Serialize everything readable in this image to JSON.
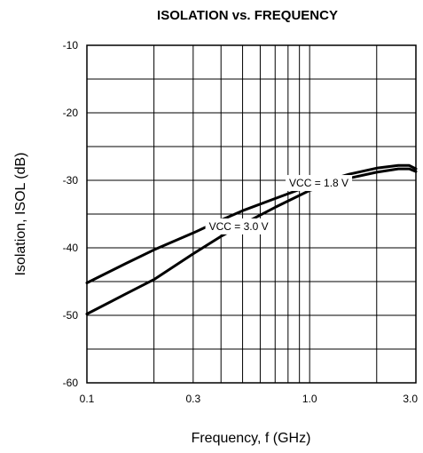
{
  "chart_data": {
    "type": "line",
    "title": "ISOLATION vs. FREQUENCY",
    "xlabel": "Frequency, f (GHz)",
    "ylabel": "Isolation, ISOL  (dB)",
    "x_scale": "log",
    "xlim": [
      0.1,
      3.0
    ],
    "ylim": [
      -60,
      -10
    ],
    "x_ticks": [
      0.1,
      0.3,
      1.0,
      3.0
    ],
    "x_tick_labels": [
      "0.1",
      "0.3",
      "1.0",
      "3.0"
    ],
    "x_gridlines": [
      0.1,
      0.2,
      0.3,
      0.4,
      0.5,
      0.6,
      0.7,
      0.8,
      0.9,
      1.0,
      2.0,
      3.0
    ],
    "y_ticks": [
      -10,
      -20,
      -30,
      -40,
      -50,
      -60
    ],
    "y_tick_labels": [
      "-10",
      "-20",
      "-30",
      "-40",
      "-50",
      "-60"
    ],
    "y_gridlines": [
      -10,
      -15,
      -20,
      -25,
      -30,
      -35,
      -40,
      -45,
      -50,
      -55,
      -60
    ],
    "grid": true,
    "legend": "none",
    "series": [
      {
        "name": "VCC = 1.8 V",
        "x": [
          0.1,
          0.15,
          0.2,
          0.3,
          0.4,
          0.5,
          0.7,
          1.0,
          1.5,
          2.0,
          2.5,
          2.8,
          3.0
        ],
        "y": [
          -45.2,
          -42.3,
          -40.3,
          -37.8,
          -35.9,
          -34.5,
          -32.7,
          -30.8,
          -29.1,
          -28.2,
          -27.8,
          -27.8,
          -28.3
        ]
      },
      {
        "name": "VCC = 3.0 V",
        "x": [
          0.1,
          0.15,
          0.2,
          0.3,
          0.4,
          0.5,
          0.7,
          1.0,
          1.5,
          2.0,
          2.5,
          2.8,
          3.0
        ],
        "y": [
          -49.8,
          -46.8,
          -44.7,
          -40.9,
          -38.3,
          -36.5,
          -34.0,
          -31.5,
          -29.7,
          -28.8,
          -28.3,
          -28.3,
          -28.7
        ]
      }
    ],
    "annotations": [
      {
        "text": "VCC = 1.8 V",
        "series": 0,
        "at_x": 1.1
      },
      {
        "text": "VCC = 3.0 V",
        "series": 1,
        "at_x": 0.48
      }
    ]
  },
  "colors": {
    "line": "#000000",
    "grid": "#000000",
    "background": "#ffffff"
  }
}
